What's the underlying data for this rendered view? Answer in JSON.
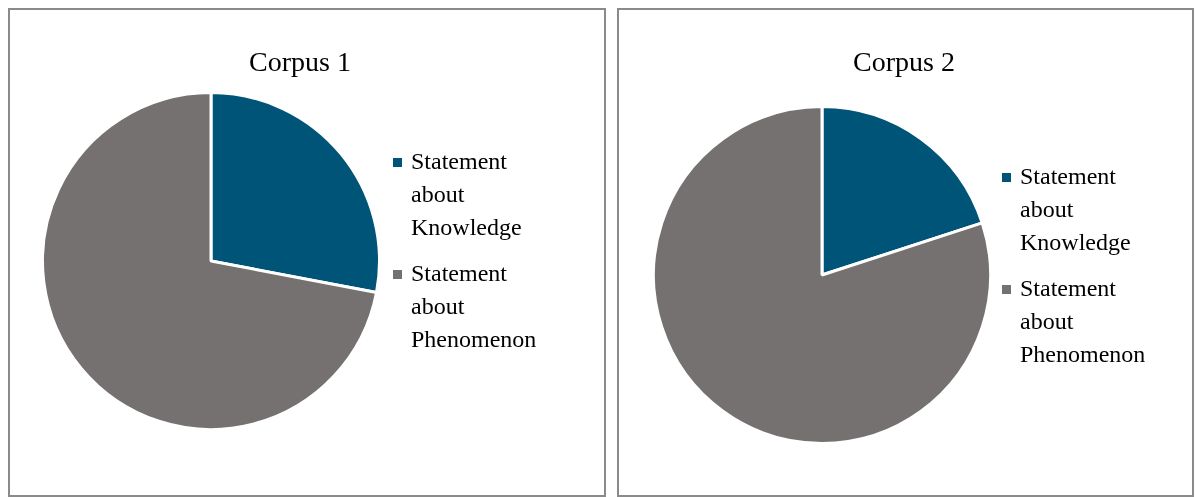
{
  "chart_data": [
    {
      "type": "pie",
      "title": "Corpus 1",
      "categories": [
        "Statement about Knowledge",
        "Statement about Phenomenon"
      ],
      "values": [
        28,
        72
      ],
      "colors": [
        "#005477",
        "#767171"
      ],
      "legend": "right"
    },
    {
      "type": "pie",
      "title": "Corpus 2",
      "categories": [
        "Statement about Knowledge",
        "Statement about Phenomenon"
      ],
      "values": [
        20,
        80
      ],
      "colors": [
        "#005477",
        "#767171"
      ],
      "legend": "right"
    }
  ]
}
